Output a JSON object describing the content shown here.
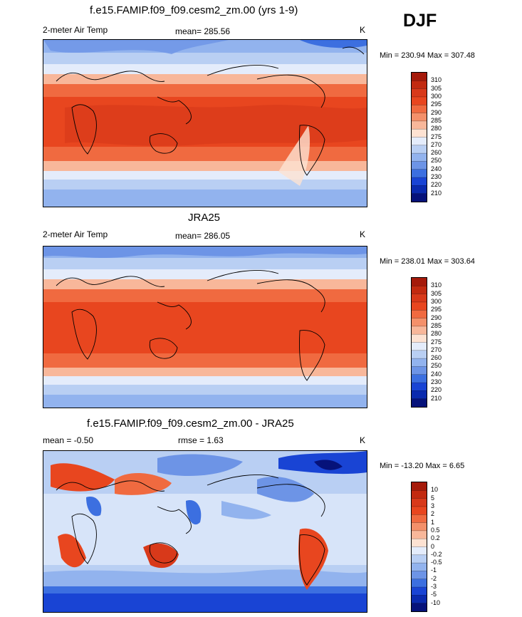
{
  "season": "DJF",
  "panels": [
    {
      "title": "f.e15.FAMIP.f09_f09.cesm2_zm.00 (yrs 1-9)",
      "left_label": "2-meter Air Temp",
      "center_label": "mean= 285.56",
      "units": "K",
      "minmax": "Min = 230.94 Max = 307.48"
    },
    {
      "title": "JRA25",
      "left_label": "2-meter Air Temp",
      "center_label": "mean= 286.05",
      "units": "K",
      "minmax": "Min = 238.01 Max = 303.64"
    },
    {
      "title": "f.e15.FAMIP.f09_f09.cesm2_zm.00 - JRA25",
      "left_label": "mean =  -0.50",
      "center_label": "rmse =   1.63",
      "units": "K",
      "minmax": "Min = -13.20 Max =   6.65"
    }
  ],
  "chart_data": [
    {
      "type": "heatmap",
      "title": "f.e15.FAMIP.f09_f09.cesm2_zm.00 (yrs 1-9)",
      "variable": "2-meter Air Temp",
      "units": "K",
      "mean": 285.56,
      "min": 230.94,
      "max": 307.48,
      "colorbar_levels": [
        "310",
        "305",
        "300",
        "295",
        "290",
        "285",
        "280",
        "275",
        "270",
        "260",
        "250",
        "240",
        "230",
        "220",
        "210"
      ],
      "colorbar_colors": [
        "#a51a0a",
        "#c22a10",
        "#d8391a",
        "#e8461f",
        "#f06a40",
        "#f4906a",
        "#f8b79a",
        "#fde2d2",
        "#e4ecfb",
        "#b9cff3",
        "#92b3ee",
        "#6d94e6",
        "#3c6fe0",
        "#1944d4",
        "#0a2aae",
        "#06127a"
      ]
    },
    {
      "type": "heatmap",
      "title": "JRA25",
      "variable": "2-meter Air Temp",
      "units": "K",
      "mean": 286.05,
      "min": 238.01,
      "max": 303.64,
      "colorbar_levels": [
        "310",
        "305",
        "300",
        "295",
        "290",
        "285",
        "280",
        "275",
        "270",
        "260",
        "250",
        "240",
        "230",
        "220",
        "210"
      ],
      "colorbar_colors": [
        "#a51a0a",
        "#c22a10",
        "#d8391a",
        "#e8461f",
        "#f06a40",
        "#f4906a",
        "#f8b79a",
        "#fde2d2",
        "#e4ecfb",
        "#b9cff3",
        "#92b3ee",
        "#6d94e6",
        "#3c6fe0",
        "#1944d4",
        "#0a2aae",
        "#06127a"
      ]
    },
    {
      "type": "heatmap",
      "title": "f.e15.FAMIP.f09_f09.cesm2_zm.00 - JRA25",
      "units": "K",
      "mean": -0.5,
      "rmse": 1.63,
      "min": -13.2,
      "max": 6.65,
      "colorbar_levels": [
        "10",
        "5",
        "3",
        "2",
        "1",
        "0.5",
        "0.2",
        "0",
        "-0.2",
        "-0.5",
        "-1",
        "-2",
        "-3",
        "-5",
        "-10"
      ],
      "colorbar_colors": [
        "#a51a0a",
        "#c22a10",
        "#d8391a",
        "#e8461f",
        "#f06a40",
        "#f4906a",
        "#f8b79a",
        "#fde2d2",
        "#e4ecfb",
        "#b9cff3",
        "#92b3ee",
        "#6d94e6",
        "#3c6fe0",
        "#1944d4",
        "#0a2aae",
        "#06127a"
      ]
    }
  ]
}
